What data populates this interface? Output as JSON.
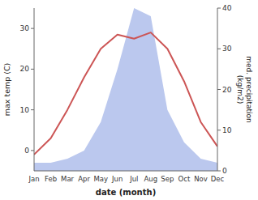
{
  "chart_data": {
    "type": "line",
    "x_label": "date (month)",
    "y_label": "max temp (C)",
    "y2_label": "med. precipitation\n(kg/m2)",
    "categories": [
      "Jan",
      "Feb",
      "Mar",
      "Apr",
      "May",
      "Jun",
      "Jul",
      "Aug",
      "Sep",
      "Oct",
      "Nov",
      "Dec"
    ],
    "series": [
      {
        "type": "area",
        "axis": "y2",
        "color": "#bbc8ee",
        "values": [
          2,
          2,
          3,
          5,
          12,
          25,
          40,
          38,
          15,
          7,
          3,
          2
        ]
      },
      {
        "type": "line",
        "color": "#cc5555",
        "values": [
          -1,
          3,
          10,
          18,
          25,
          28.5,
          27.5,
          29,
          25,
          17,
          7,
          1
        ]
      }
    ],
    "ylim": [
      -5,
      35
    ],
    "yticks": [
      0,
      10,
      20,
      30
    ],
    "y2lim": [
      0,
      40
    ],
    "y2ticks": [
      0,
      10,
      20,
      30,
      40
    ],
    "grid": false
  }
}
